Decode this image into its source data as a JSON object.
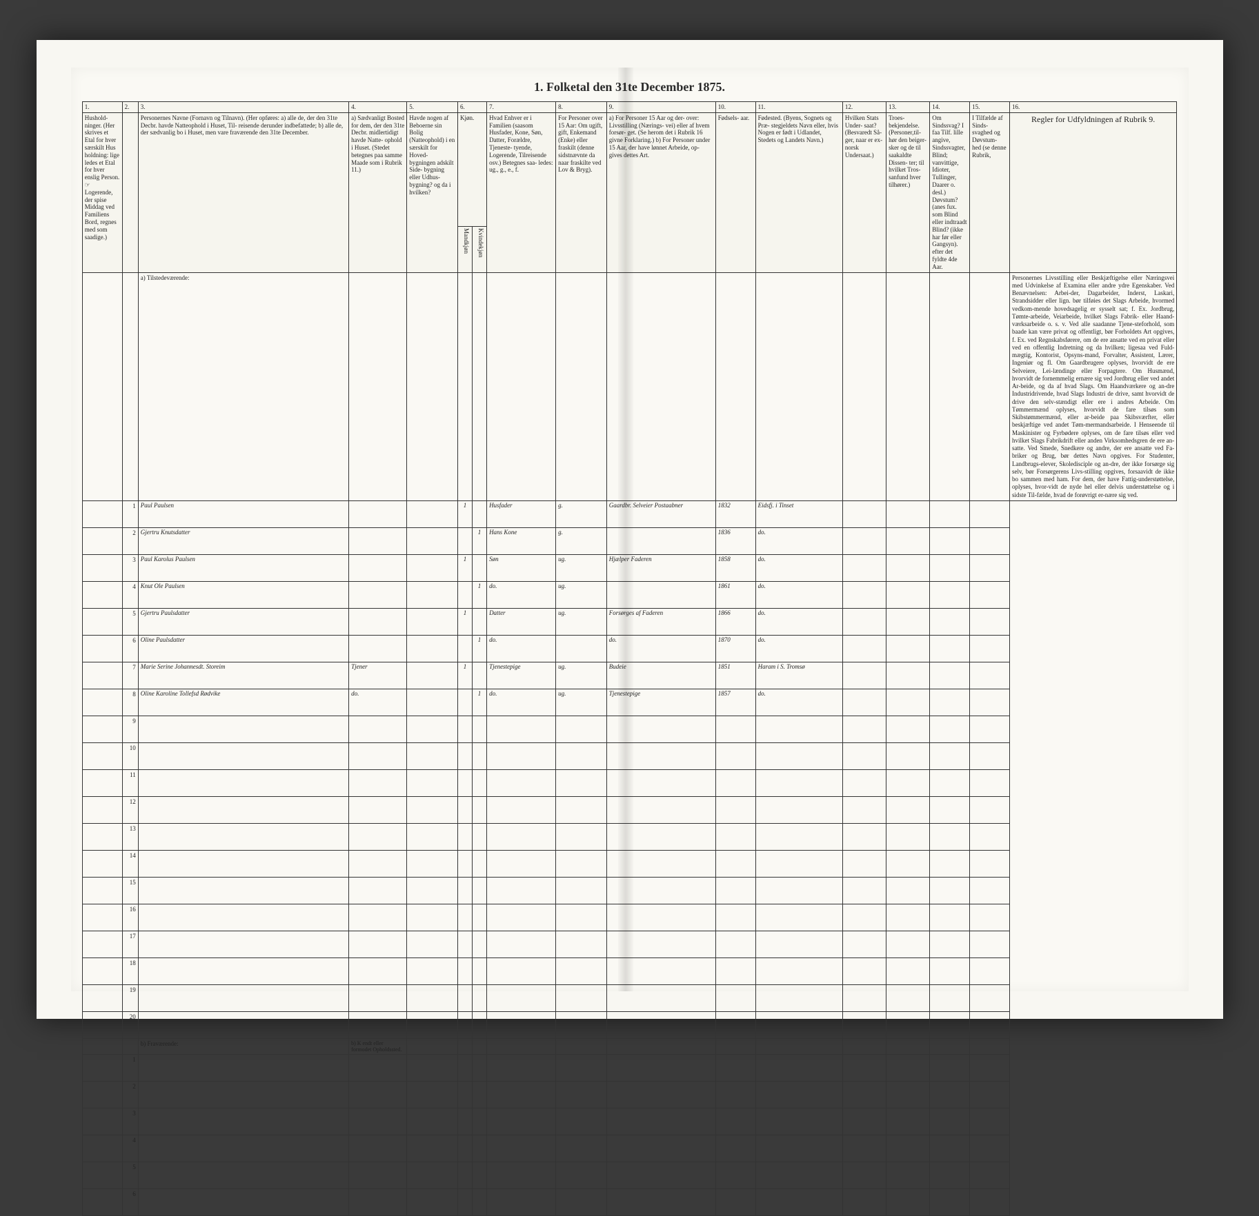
{
  "title": "1. Folketal den 31te December 1875.",
  "colnums": [
    "1.",
    "2.",
    "3.",
    "4.",
    "5.",
    "6.",
    "7.",
    "8.",
    "9.",
    "10.",
    "11.",
    "12.",
    "13.",
    "14.",
    "15.",
    "16."
  ],
  "headers": {
    "c1": "Hushold-\nninger.\n(Her skrives et Etal for hver særskilt Hus holdning: lige ledes et Etal for hver enslig Person.\n☞ Logerende, der spise Middag ved Familiens Bord, regnes med som saadige.)",
    "c3": "Personernes Navne (Fornavn og Tilnavn).\n(Her opføres:\na) alle de, der den 31te Decbr. havde Natteophold i Huset, Til-\nreisende derunder indbefattede;\nb) alle de, der sædvanlig bo i Huset, men vare fraværende\nden 31te December.",
    "c4": "a) Sædvanligt Bosted for dem, der den 31te Decbr. midlertidigt havde Natte-\nophold i Huset.\n(Stedet betegnes paa samme Maade som i Rubrik 11.)",
    "c5": "Havde nogen af Beboerne sin Bolig (Natteophold) i en særskilt for Hoved-\nbygningen adskilt Side-\nbygning eller Udhus-\nbygning? og da i hvilken?",
    "c6": "Kjøn.",
    "c6a": "Mandkjøn",
    "c6b": "Kvindekjøn",
    "c7": "Hvad Enhver er\ni Familien\n(saasom Husfader, Kone, Søn, Datter, Forældre, Tjeneste-\ntyende, Logerende, Tilreisende osv.)\nBetegnes saa-\nledes:\nug., g., e., f.",
    "c8": "For Personer over 15 Aar: Om ugift, gift, Enkemand (Enke) eller fraskilt (denne sidstnævnte da naar fraskilte ved Lov & Bryg).",
    "c9": "a) For Personer 15 Aar og der-\nover: Livsstilling (Nærings-\nvei) eller af hvem forsør-\nget. (Se herom det i Rubrik 16\ngivne Forklaring.)\nb) For Personer under 15 Aar,\nder have lønnet Arbeide, op-\ngives dettes Art.",
    "c10": "Fødsels-\naar.",
    "c11": "Fødested.\n(Byens, Sognets og Præ-\nstegjeldets Navn eller, hvis Nogen er født i Udlandet, Stedets og Landets Navn.)",
    "c12": "Hvilken Stats Under-\nsaat?\n(Besvaredt Så-\nger, naar er ex-\nnorsk Undersaat.)",
    "c13": "Troes-\nbekjendelse.\n(Personer,til-\nhør den beiger-\nsker og de til saakaldte Dissen-\nter; til hvilket Tros-\nsanfund hver tilhører.)",
    "c14": "Om Sindssvag? I faa Tilf.\nlille angive, Sindssvagter, Blind; vanvittige, Idioter,\nTullinger, Daarer o. desl.)\nDøvstum? (anes fux.\nsom Blind eller indtraadt\nBlind? (ikke har før eller\nGangsyn). efter det fyldte 4de Aar.",
    "c15": "I Tilfælde af Sinds-\nsvaghed og Døvstum-\nhed (se denne Rubrik,",
    "c16": "Regler for Udfyldningen\naf\nRubrik 9."
  },
  "section_a": "a) Tilstedeværende:",
  "section_b": "b) Fraværende:",
  "section_b_col4": "b) K endt eller formodet Opholdssted.",
  "rows": [
    {
      "n": "1",
      "name": "Paul Paulsen",
      "c4": "",
      "c5": "",
      "c6": "1",
      "c7": "Husfader",
      "c8": "g.",
      "c9": "Gaardbr. Selveier\nPostaabner",
      "c10": "1832",
      "c11": "Eidsfj. i Tinset"
    },
    {
      "n": "2",
      "name": "Gjertru Knutsdatter",
      "c4": "",
      "c5": "",
      "c6": "1",
      "c7": "Hans Kone",
      "c8": "g.",
      "c9": "",
      "c10": "1836",
      "c11": "do."
    },
    {
      "n": "3",
      "name": "Paul Karolus Paulsen",
      "c4": "",
      "c5": "",
      "c6": "1",
      "c7": "Søn",
      "c8": "ug.",
      "c9": "Hjælper Faderen",
      "c10": "1858",
      "c11": "do."
    },
    {
      "n": "4",
      "name": "Knut Ole Paulsen",
      "c4": "",
      "c5": "",
      "c6": "1",
      "c7": "do.",
      "c8": "ug.",
      "c9": "",
      "c10": "1861",
      "c11": "do."
    },
    {
      "n": "5",
      "name": "Gjertru Paulsdatter",
      "c4": "",
      "c5": "",
      "c6": "1",
      "c7": "Datter",
      "c8": "ug.",
      "c9": "Forsørges af Faderen",
      "c10": "1866",
      "c11": "do."
    },
    {
      "n": "6",
      "name": "Oline Paulsdatter",
      "c4": "",
      "c5": "",
      "c6": "1",
      "c7": "do.",
      "c8": "",
      "c9": "do.",
      "c10": "1870",
      "c11": "do."
    },
    {
      "n": "7",
      "name": "Marie Serine Johannesdt. Storeim",
      "c4": "Tjener",
      "c5": "",
      "c6": "1",
      "c7": "Tjenestepige",
      "c8": "ug.",
      "c9": "Budeie",
      "c10": "1851",
      "c11": "Haram i S. Tromsø"
    },
    {
      "n": "8",
      "name": "Oline Karoline Tollefsd Rødvike",
      "c4": "do.",
      "c5": "",
      "c6": "1",
      "c7": "do.",
      "c8": "ug.",
      "c9": "Tjenestepige",
      "c10": "1857",
      "c11": "do."
    }
  ],
  "blank_present": [
    "9",
    "10",
    "11",
    "12",
    "13",
    "14",
    "15",
    "16",
    "17",
    "18",
    "19",
    "20"
  ],
  "blank_absent": [
    "1",
    "2",
    "3",
    "4",
    "5",
    "6"
  ],
  "instructions": "Personernes Livsstilling eller Beskjæftigelse eller Næringsvei med Udvinkelse af Examina eller andre ydre Egenskaber.\n\nVed Benævnelsen: Arbei-der, Dagarbeider, Inderst, Laskari, Strandsidder eller lign. bør tilføies det Slags Arbeide, hvormed vedkom-mende hovedsagelig er sysselt sat; f. Ex. Jordbrug, Tømte-arbeide, Veiarbeide, hvilket Slags Fabrik- eller Haand-værksarbeide o. s. v.\n\nVed alle saadanne Tjene-steforhold, som baade kan være privat og offentligt, bør Forholdets Art opgives, f. Ex. ved Regnskabsførere, om de ere ansatte ved en privat eller ved en offentlig Indretning og da hvilken; ligesaa ved Fuld-mægtig, Kontorist, Opsyns-mand, Forvalter, Assistent, Lærer, Ingeniør og fl.\n\nOm Gaardbrugere oplyses, hvorvidt de ere Selveiere, Lei-lændinge eller Forpagtere.\n\nOm Husmænd, hvorvidt de fornemmelig ernære sig ved Jordbrug eller ved andet Ar-beide, og da af hvad Slags.\n\nOm Haandværkere og an-dre Industridrivende, hvad Slags Industri de drive, samt hvorvidt de drive den selv-stændigt eller ere i andres Arbeide.\n\nOm Tømmermænd oplyses, hvorvidt de fare tilsøs som Skibstømmermænd, eller ar-beide paa Skibsværfter, eller beskjæftige ved andet Tøm-mermandsarbeide.\n\nI Henseende til Maskinister og Fyrbødere oplyses, om de fare tilsøs eller ved hvilket Slags Fabrikdrift eller anden Virksomhedsgren de ere an-satte.\n\nVed Smede, Snedkere og andre, der ere ansatte ved Fa-briker og Brug, bør dettes Navn opgives.\n\nFor Studenter, Landbrugs-elever, Skoledisciple og an-dre, der ikke forsørge sig selv, bør Forsørgerens Livs-stilling opgives, forsaavidt de ikke bo sammen med ham.\n\nFor dem, der have Fattig-understøttelse, oplyses, hvor-vidt de nyde hel eller delvis understøttelse og i sidste Til-fælde, hvad de forøvrigt er-nære sig ved."
}
